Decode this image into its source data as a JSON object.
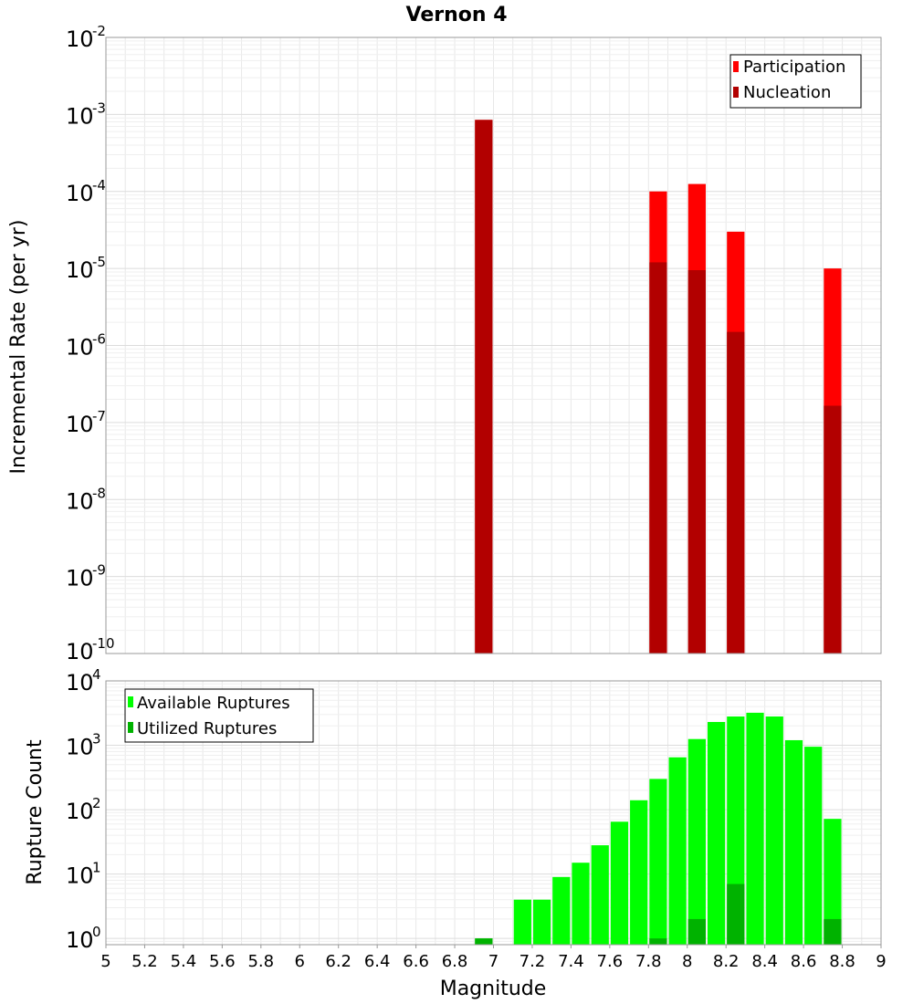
{
  "chart_data": [
    {
      "type": "bar",
      "title": "Vernon 4",
      "ylabel": "Incremental Rate (per yr)",
      "yscale": "log",
      "ylim": [
        1e-10,
        0.01
      ],
      "xlim": [
        5,
        9
      ],
      "bin_width": 0.1,
      "grid": true,
      "legend_position": "top-right",
      "y_ticks": [
        {
          "base": "10",
          "exp": "-2",
          "value": 0.01
        },
        {
          "base": "10",
          "exp": "-3",
          "value": 0.001
        },
        {
          "base": "10",
          "exp": "-4",
          "value": 0.0001
        },
        {
          "base": "10",
          "exp": "-5",
          "value": 1e-05
        },
        {
          "base": "10",
          "exp": "-6",
          "value": 1e-06
        },
        {
          "base": "10",
          "exp": "-7",
          "value": 1e-07
        },
        {
          "base": "10",
          "exp": "-8",
          "value": 1e-08
        },
        {
          "base": "10",
          "exp": "-9",
          "value": 1e-09
        },
        {
          "base": "10",
          "exp": "-10",
          "value": 1e-10
        }
      ],
      "series": [
        {
          "name": "Participation",
          "color": "#ff0000",
          "x": [
            6.95,
            7.85,
            8.05,
            8.25,
            8.75
          ],
          "values": [
            0.00085,
            0.0001,
            0.000125,
            3e-05,
            1e-05
          ]
        },
        {
          "name": "Nucleation",
          "color": "#b20000",
          "x": [
            6.95,
            7.85,
            8.05,
            8.25,
            8.75
          ],
          "values": [
            0.00085,
            1.2e-05,
            9.5e-06,
            1.5e-06,
            1.65e-07
          ]
        }
      ]
    },
    {
      "type": "bar",
      "xlabel": "Magnitude",
      "ylabel": "Rupture Count",
      "yscale": "log",
      "ylim": [
        0.8,
        10000
      ],
      "xlim": [
        5,
        9
      ],
      "bin_width": 0.1,
      "grid": true,
      "legend_position": "top-left",
      "y_ticks": [
        {
          "base": "10",
          "exp": "4",
          "value": 10000
        },
        {
          "base": "10",
          "exp": "3",
          "value": 1000
        },
        {
          "base": "10",
          "exp": "2",
          "value": 100
        },
        {
          "base": "10",
          "exp": "1",
          "value": 10
        },
        {
          "base": "10",
          "exp": "0",
          "value": 1
        }
      ],
      "x_ticks": [
        "5",
        "5.2",
        "5.4",
        "5.6",
        "5.8",
        "6",
        "6.2",
        "6.4",
        "6.6",
        "6.8",
        "7",
        "7.2",
        "7.4",
        "7.6",
        "7.8",
        "8",
        "8.2",
        "8.4",
        "8.6",
        "8.8",
        "9"
      ],
      "series": [
        {
          "name": "Available Ruptures",
          "color": "#00ff00",
          "x": [
            6.95,
            7.15,
            7.25,
            7.35,
            7.45,
            7.55,
            7.65,
            7.75,
            7.85,
            7.95,
            8.05,
            8.15,
            8.25,
            8.35,
            8.45,
            8.55,
            8.65,
            8.75
          ],
          "values": [
            1,
            4,
            4,
            9,
            15,
            28,
            65,
            140,
            300,
            650,
            1250,
            2300,
            2800,
            3200,
            2800,
            1200,
            950,
            72
          ]
        },
        {
          "name": "Utilized Ruptures",
          "color": "#00b200",
          "x": [
            6.95,
            7.85,
            8.05,
            8.25,
            8.75
          ],
          "values": [
            1,
            1,
            2,
            7,
            2
          ]
        }
      ]
    }
  ]
}
